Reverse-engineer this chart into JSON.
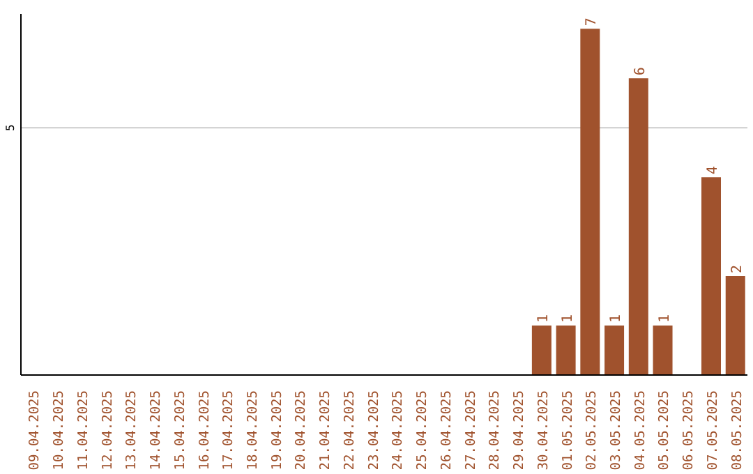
{
  "chart_data": {
    "type": "bar",
    "categories": [
      "09.04.2025",
      "10.04.2025",
      "11.04.2025",
      "12.04.2025",
      "13.04.2025",
      "14.04.2025",
      "15.04.2025",
      "16.04.2025",
      "17.04.2025",
      "18.04.2025",
      "19.04.2025",
      "20.04.2025",
      "21.04.2025",
      "22.04.2025",
      "23.04.2025",
      "24.04.2025",
      "25.04.2025",
      "26.04.2025",
      "27.04.2025",
      "28.04.2025",
      "29.04.2025",
      "30.04.2025",
      "01.05.2025",
      "02.05.2025",
      "03.05.2025",
      "04.05.2025",
      "05.05.2025",
      "06.05.2025",
      "07.05.2025",
      "08.05.2025"
    ],
    "values": [
      null,
      null,
      null,
      null,
      null,
      null,
      null,
      null,
      null,
      null,
      null,
      null,
      null,
      null,
      null,
      null,
      null,
      null,
      null,
      null,
      null,
      1,
      1,
      7,
      1,
      6,
      1,
      null,
      4,
      2
    ],
    "data_labels": true,
    "color": "#a0522d",
    "ylim": [
      0,
      7.3
    ],
    "yticks": [
      5
    ],
    "grid": "y",
    "legend": false
  }
}
